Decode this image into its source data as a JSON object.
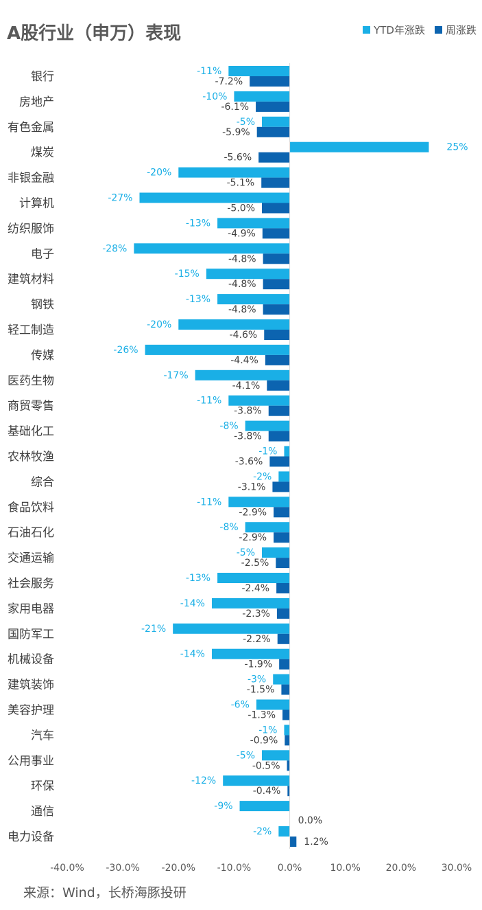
{
  "title": "A股行业（申万）表现",
  "legend": [
    {
      "label": "YTD年涨跌",
      "color": "#1AAFE6"
    },
    {
      "label": "周涨跌",
      "color": "#0C64B0"
    }
  ],
  "source": "来源：Wind，长桥海豚投研",
  "colors": {
    "ytd": "#1AAFE6",
    "week": "#0C64B0",
    "axis": "#d9d9d9"
  },
  "chart_data": {
    "type": "bar",
    "orientation": "horizontal",
    "categories": [
      "银行",
      "房地产",
      "有色金属",
      "煤炭",
      "非银金融",
      "计算机",
      "纺织服饰",
      "电子",
      "建筑材料",
      "钢铁",
      "轻工制造",
      "传媒",
      "医药生物",
      "商贸零售",
      "基础化工",
      "农林牧渔",
      "综合",
      "食品饮料",
      "石油石化",
      "交通运输",
      "社会服务",
      "家用电器",
      "国防军工",
      "机械设备",
      "建筑装饰",
      "美容护理",
      "汽车",
      "公用事业",
      "环保",
      "通信",
      "电力设备"
    ],
    "series": [
      {
        "name": "YTD年涨跌",
        "values": [
          -11,
          -10,
          -5,
          25,
          -20,
          -27,
          -13,
          -28,
          -15,
          -13,
          -20,
          -26,
          -17,
          -11,
          -8,
          -1,
          -2,
          -11,
          -8,
          -5,
          -13,
          -14,
          -21,
          -14,
          -3,
          -6,
          -1,
          -5,
          -12,
          -9,
          -2
        ],
        "labels": [
          "-11%",
          "-10%",
          "-5%",
          "25%",
          "-20%",
          "-27%",
          "-13%",
          "-28%",
          "-15%",
          "-13%",
          "-20%",
          "-26%",
          "-17%",
          "-11%",
          "-8%",
          "-1%",
          "-2%",
          "-11%",
          "-8%",
          "-5%",
          "-13%",
          "-14%",
          "-21%",
          "-14%",
          "-3%",
          "-6%",
          "-1%",
          "-5%",
          "-12%",
          "-9%",
          "-2%"
        ]
      },
      {
        "name": "周涨跌",
        "values": [
          -7.2,
          -6.1,
          -5.9,
          -5.6,
          -5.1,
          -5.0,
          -4.9,
          -4.8,
          -4.8,
          -4.8,
          -4.6,
          -4.4,
          -4.1,
          -3.8,
          -3.8,
          -3.6,
          -3.1,
          -2.9,
          -2.9,
          -2.5,
          -2.4,
          -2.3,
          -2.2,
          -1.9,
          -1.5,
          -1.3,
          -0.9,
          -0.5,
          -0.4,
          0.0,
          1.2
        ],
        "labels": [
          "-7.2%",
          "-6.1%",
          "-5.9%",
          "-5.6%",
          "-5.1%",
          "-5.0%",
          "-4.9%",
          "-4.8%",
          "-4.8%",
          "-4.8%",
          "-4.6%",
          "-4.4%",
          "-4.1%",
          "-3.8%",
          "-3.8%",
          "-3.6%",
          "-3.1%",
          "-2.9%",
          "-2.9%",
          "-2.5%",
          "-2.4%",
          "-2.3%",
          "-2.2%",
          "-1.9%",
          "-1.5%",
          "-1.3%",
          "-0.9%",
          "-0.5%",
          "-0.4%",
          "0.0%",
          "1.2%"
        ]
      }
    ],
    "xlim": [
      -40,
      30
    ],
    "xticks": [
      -40,
      -30,
      -20,
      -10,
      0,
      10,
      20,
      30
    ],
    "xtick_labels": [
      "-40.0%",
      "-30.0%",
      "-20.0%",
      "-10.0%",
      "0.0%",
      "10.0%",
      "20.0%",
      "30.0%"
    ],
    "grid": false
  }
}
